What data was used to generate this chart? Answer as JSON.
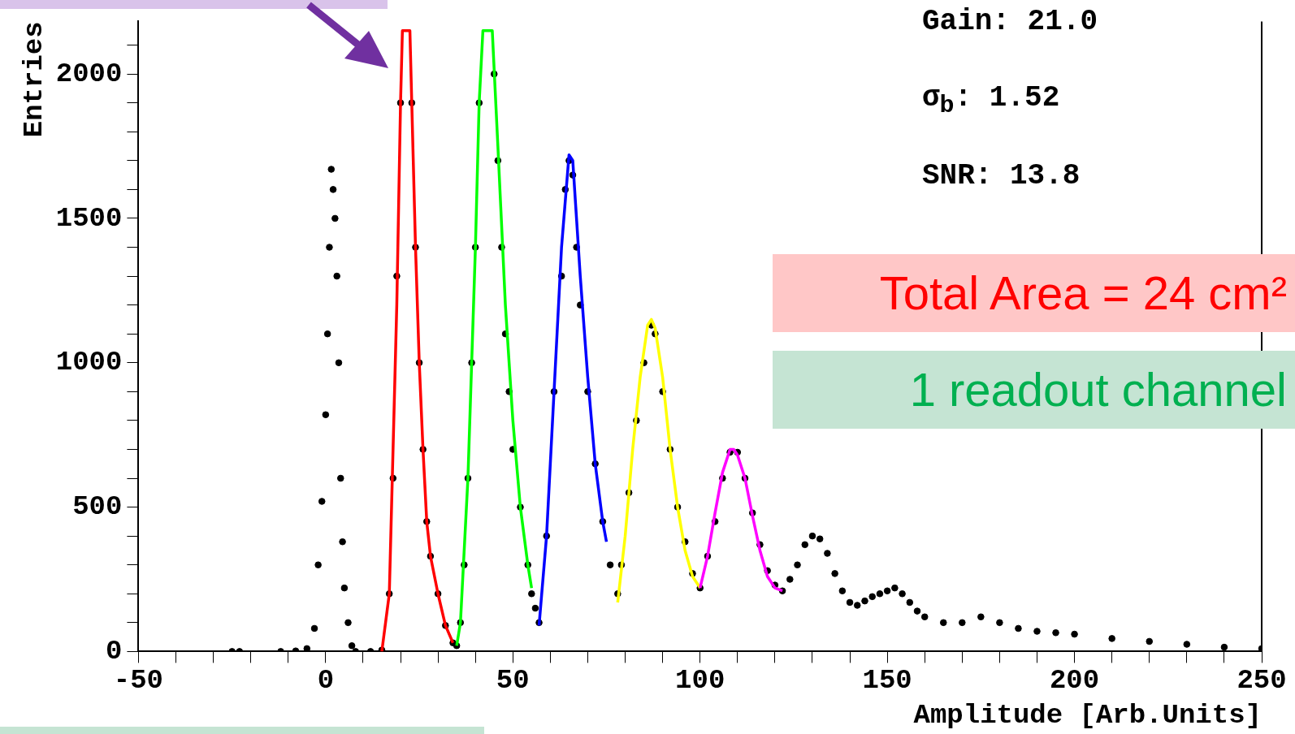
{
  "chart_data": {
    "type": "scatter",
    "xlabel": "Amplitude [Arb.Units]",
    "ylabel": "Entries",
    "xlim": [
      -50,
      250
    ],
    "ylim": [
      0,
      2182
    ],
    "xticks": [
      -50,
      {
        "value": -40,
        "label": null
      },
      {
        "value": -30,
        "label": null
      },
      {
        "value": -20,
        "label": null
      },
      {
        "value": -10,
        "label": null
      },
      0,
      {
        "value": 10,
        "label": null
      },
      {
        "value": 20,
        "label": null
      },
      {
        "value": 30,
        "label": null
      },
      {
        "value": 40,
        "label": null
      },
      50,
      {
        "value": 60,
        "label": null
      },
      {
        "value": 70,
        "label": null
      },
      {
        "value": 80,
        "label": null
      },
      {
        "value": 90,
        "label": null
      },
      100,
      {
        "value": 110,
        "label": null
      },
      {
        "value": 120,
        "label": null
      },
      {
        "value": 130,
        "label": null
      },
      {
        "value": 140,
        "label": null
      },
      150,
      {
        "value": 160,
        "label": null
      },
      {
        "value": 170,
        "label": null
      },
      {
        "value": 180,
        "label": null
      },
      {
        "value": 190,
        "label": null
      },
      200,
      {
        "value": 210,
        "label": null
      },
      {
        "value": 220,
        "label": null
      },
      {
        "value": 230,
        "label": null
      },
      {
        "value": 240,
        "label": null
      },
      250
    ],
    "yticks": [
      0,
      {
        "value": 100,
        "label": null
      },
      {
        "value": 200,
        "label": null
      },
      {
        "value": 300,
        "label": null
      },
      {
        "value": 400,
        "label": null
      },
      500,
      {
        "value": 600,
        "label": null
      },
      {
        "value": 700,
        "label": null
      },
      {
        "value": 800,
        "label": null
      },
      {
        "value": 900,
        "label": null
      },
      1000,
      {
        "value": 1100,
        "label": null
      },
      {
        "value": 1200,
        "label": null
      },
      {
        "value": 1300,
        "label": null
      },
      {
        "value": 1400,
        "label": null
      },
      1500,
      {
        "value": 1600,
        "label": null
      },
      {
        "value": 1700,
        "label": null
      },
      {
        "value": 1800,
        "label": null
      },
      {
        "value": 1900,
        "label": null
      },
      2000,
      {
        "value": 2100,
        "label": null
      }
    ],
    "grid": false,
    "legend": false,
    "marker": "circle",
    "series": [
      {
        "color": "#000000",
        "x": [
          -25,
          -23,
          -12,
          -8,
          -5,
          -3,
          -2,
          -1,
          0,
          0.5,
          1,
          1.5,
          2,
          2.5,
          3,
          3.5,
          4,
          4.5,
          5,
          6,
          7,
          8,
          12,
          15,
          17,
          18,
          19,
          20,
          23,
          24,
          25,
          26,
          27,
          28,
          30,
          32,
          34,
          35,
          36,
          37,
          38,
          39,
          40,
          41,
          45,
          46,
          47,
          48,
          49,
          50,
          52,
          54,
          55,
          56,
          57,
          59,
          61,
          63,
          64,
          65,
          66,
          67,
          68,
          70,
          72,
          74,
          76,
          78,
          79,
          81,
          83,
          85,
          87,
          88,
          90,
          92,
          94,
          96,
          98,
          100,
          102,
          104,
          106,
          108,
          110,
          112,
          114,
          116,
          118,
          120,
          122,
          124,
          126,
          128,
          130,
          132,
          134,
          136,
          138,
          140,
          142,
          144,
          146,
          148,
          150,
          152,
          154,
          156,
          158,
          160,
          165,
          170,
          175,
          180,
          185,
          190,
          195,
          200,
          210,
          220,
          230,
          240,
          250
        ],
        "values": [
          0,
          0,
          0,
          2,
          10,
          80,
          300,
          520,
          820,
          1100,
          1400,
          1670,
          1600,
          1500,
          1300,
          1000,
          600,
          380,
          220,
          100,
          20,
          0,
          0,
          5,
          200,
          600,
          1300,
          1900,
          1900,
          1400,
          1000,
          700,
          450,
          330,
          200,
          90,
          30,
          20,
          100,
          300,
          600,
          1000,
          1400,
          1900,
          2000,
          1700,
          1400,
          1100,
          900,
          700,
          500,
          300,
          200,
          150,
          100,
          400,
          900,
          1300,
          1600,
          1700,
          1650,
          1400,
          1200,
          900,
          650,
          450,
          300,
          200,
          300,
          550,
          800,
          1000,
          1130,
          1100,
          900,
          700,
          500,
          380,
          270,
          220,
          330,
          450,
          600,
          690,
          690,
          600,
          480,
          370,
          280,
          230,
          210,
          250,
          300,
          370,
          400,
          390,
          340,
          270,
          210,
          170,
          160,
          175,
          190,
          200,
          210,
          220,
          200,
          170,
          140,
          120,
          100,
          100,
          120,
          100,
          80,
          70,
          65,
          60,
          45,
          35,
          25,
          15,
          10
        ]
      },
      {
        "type": "line",
        "marker": "none",
        "color": "#ff0000",
        "x": [
          15,
          17,
          19,
          20,
          20.5,
          22.5,
          23,
          24,
          25,
          26,
          27,
          28,
          30,
          32,
          34
        ],
        "values": [
          0,
          200,
          1200,
          1900,
          2150,
          2150,
          1900,
          1400,
          1000,
          700,
          450,
          330,
          200,
          90,
          30
        ]
      },
      {
        "type": "line",
        "marker": "none",
        "color": "#00ff00",
        "x": [
          35,
          36,
          38,
          40,
          41,
          42,
          44.5,
          46,
          48,
          50,
          52,
          54,
          55
        ],
        "values": [
          20,
          100,
          600,
          1400,
          1900,
          2150,
          2150,
          1750,
          1200,
          800,
          500,
          300,
          220
        ]
      },
      {
        "type": "line",
        "marker": "none",
        "color": "#0000ff",
        "x": [
          57,
          59,
          61,
          63,
          65,
          66,
          68,
          70,
          72,
          74,
          75
        ],
        "values": [
          90,
          400,
          900,
          1400,
          1720,
          1700,
          1300,
          950,
          650,
          450,
          380
        ]
      },
      {
        "type": "line",
        "marker": "none",
        "color": "#ffff00",
        "x": [
          78,
          80,
          82,
          84,
          86,
          87,
          88,
          90,
          92,
          94,
          96,
          98,
          100
        ],
        "values": [
          170,
          400,
          700,
          950,
          1130,
          1150,
          1120,
          950,
          700,
          500,
          350,
          260,
          220
        ]
      },
      {
        "type": "line",
        "marker": "none",
        "color": "#ff00ff",
        "x": [
          100,
          102,
          104,
          106,
          108,
          109,
          110,
          112,
          114,
          116,
          118,
          120,
          122
        ],
        "values": [
          220,
          330,
          480,
          620,
          700,
          700,
          680,
          600,
          470,
          350,
          260,
          220,
          210
        ]
      }
    ],
    "annotations": [
      "Gain: 21.0",
      "σ$_{b}$: 1.52",
      "SNR: 13.8",
      "Total Area = 24 cm²",
      "1 readout channel"
    ]
  }
}
